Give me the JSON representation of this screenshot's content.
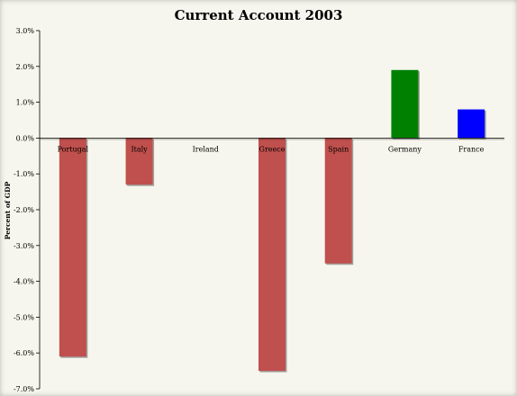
{
  "chart_data": {
    "type": "bar",
    "title": "Current Account 2003",
    "ylabel": "Percent of GDP",
    "xlabel": "",
    "ylim": [
      -7.0,
      3.0
    ],
    "yticks": [
      "3.0%",
      "2.0%",
      "1.0%",
      "0.0%",
      "-1.0%",
      "-2.0%",
      "-3.0%",
      "-4.0%",
      "-5.0%",
      "-6.0%",
      "-7.0%"
    ],
    "categories": [
      "Portugal",
      "Italy",
      "Ireland",
      "Greece",
      "Spain",
      "Germany",
      "France"
    ],
    "values": [
      -6.1,
      -1.3,
      0.0,
      -6.5,
      -3.5,
      1.9,
      0.8
    ],
    "colors": [
      "#c0504d",
      "#c0504d",
      "#c0504d",
      "#c0504d",
      "#c0504d",
      "#008000",
      "#0000ff"
    ],
    "grid": false,
    "legend": "none"
  }
}
